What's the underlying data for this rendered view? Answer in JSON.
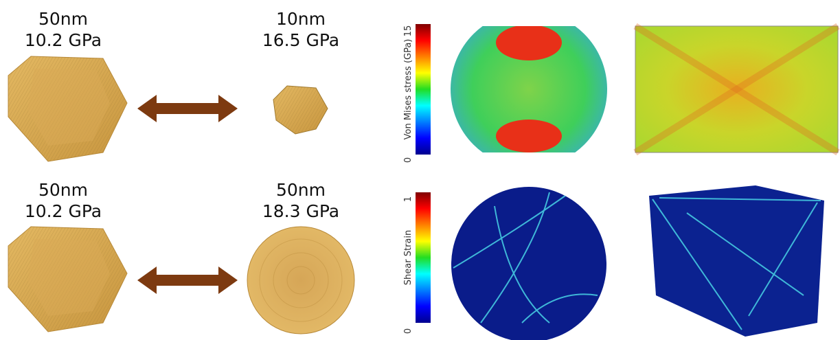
{
  "rows": [
    {
      "left": {
        "size": "50nm",
        "stress": "10.2 GPa"
      },
      "right": {
        "size": "10nm",
        "stress": "16.5 GPa"
      }
    },
    {
      "left": {
        "size": "50nm",
        "stress": "10.2 GPa"
      },
      "right": {
        "size": "50nm",
        "stress": "18.3 GPa"
      }
    }
  ],
  "colorbars": [
    {
      "label": "Von Mises stress (GPa)",
      "max": 15,
      "min": 0
    },
    {
      "label": "Shear Strain",
      "max": 1,
      "min": 0
    }
  ]
}
